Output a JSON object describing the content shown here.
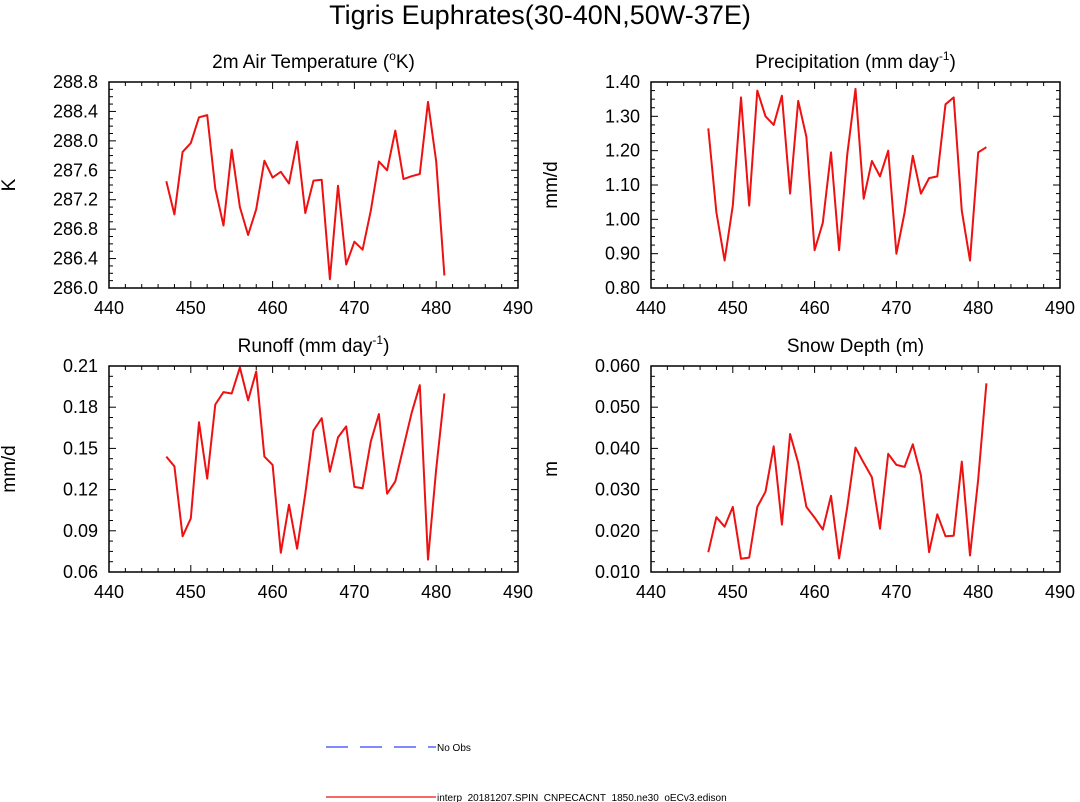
{
  "figure": {
    "title": "Tigris Euphrates(30-40N,50W-37E)",
    "colors": {
      "series": "#ee1111",
      "obs": "#3344ff",
      "axis": "#000000"
    }
  },
  "legend": {
    "items": [
      {
        "label": "No Obs",
        "style": "dashed",
        "color": "#3344ff"
      },
      {
        "label": "interp_20181207.SPIN_CNPECACNT_1850.ne30_oECv3.edison",
        "style": "solid",
        "color": "#ee1111"
      }
    ]
  },
  "chart_data": [
    {
      "type": "line",
      "title": "2m Air Temperature (",
      "title_sup": "o",
      "title_after": "K)",
      "xlabel": "",
      "ylabel": "K",
      "xlim": [
        440,
        490
      ],
      "ylim": [
        286.0,
        288.8
      ],
      "xticks": [
        "440",
        "450",
        "460",
        "470",
        "480",
        "490"
      ],
      "yticks": [
        "286.0",
        "286.4",
        "286.8",
        "287.2",
        "287.6",
        "288.0",
        "288.4",
        "288.8"
      ],
      "x": [
        447,
        448,
        449,
        450,
        451,
        452,
        453,
        454,
        455,
        456,
        457,
        458,
        459,
        460,
        461,
        462,
        463,
        464,
        465,
        466,
        467,
        468,
        469,
        470,
        471,
        472,
        473,
        474,
        475,
        476,
        477,
        478,
        479,
        480,
        481
      ],
      "values": [
        287.45,
        287.0,
        287.85,
        287.97,
        288.32,
        288.35,
        287.35,
        286.85,
        287.88,
        287.1,
        286.72,
        287.07,
        287.73,
        287.5,
        287.58,
        287.42,
        287.99,
        287.02,
        287.46,
        287.47,
        286.12,
        287.39,
        286.32,
        286.63,
        286.52,
        287.05,
        287.72,
        287.6,
        288.14,
        287.48,
        287.52,
        287.55,
        288.53,
        287.72,
        286.17
      ],
      "series_name": "interp_20181207.SPIN_CNPECACNT_1850.ne30_oECv3.edison"
    },
    {
      "type": "line",
      "title": "Precipitation (mm day",
      "title_sup": "-1",
      "title_after": ")",
      "xlabel": "",
      "ylabel": "mm/d",
      "xlim": [
        440,
        490
      ],
      "ylim": [
        0.8,
        1.4
      ],
      "xticks": [
        "440",
        "450",
        "460",
        "470",
        "480",
        "490"
      ],
      "yticks": [
        "0.80",
        "0.90",
        "1.00",
        "1.10",
        "1.20",
        "1.30",
        "1.40"
      ],
      "x": [
        447,
        448,
        449,
        450,
        451,
        452,
        453,
        454,
        455,
        456,
        457,
        458,
        459,
        460,
        461,
        462,
        463,
        464,
        465,
        466,
        467,
        468,
        469,
        470,
        471,
        472,
        473,
        474,
        475,
        476,
        477,
        478,
        479,
        480,
        481
      ],
      "values": [
        1.265,
        1.02,
        0.88,
        1.04,
        1.355,
        1.04,
        1.375,
        1.3,
        1.275,
        1.36,
        1.075,
        1.345,
        1.24,
        0.91,
        0.99,
        1.195,
        0.91,
        1.19,
        1.38,
        1.06,
        1.17,
        1.125,
        1.2,
        0.9,
        1.02,
        1.185,
        1.075,
        1.12,
        1.125,
        1.335,
        1.355,
        1.025,
        0.88,
        1.195,
        1.21
      ],
      "series_name": "interp_20181207.SPIN_CNPECACNT_1850.ne30_oECv3.edison"
    },
    {
      "type": "line",
      "title": "Runoff (mm day",
      "title_sup": "-1",
      "title_after": ")",
      "xlabel": "",
      "ylabel": "mm/d",
      "xlim": [
        440,
        490
      ],
      "ylim": [
        0.06,
        0.21
      ],
      "xticks": [
        "440",
        "450",
        "460",
        "470",
        "480",
        "490"
      ],
      "yticks": [
        "0.06",
        "0.09",
        "0.12",
        "0.15",
        "0.18",
        "0.21"
      ],
      "x": [
        447,
        448,
        449,
        450,
        451,
        452,
        453,
        454,
        455,
        456,
        457,
        458,
        459,
        460,
        461,
        462,
        463,
        464,
        465,
        466,
        467,
        468,
        469,
        470,
        471,
        472,
        473,
        474,
        475,
        476,
        477,
        478,
        479,
        480,
        481
      ],
      "values": [
        0.144,
        0.137,
        0.086,
        0.099,
        0.169,
        0.128,
        0.182,
        0.191,
        0.19,
        0.209,
        0.185,
        0.206,
        0.144,
        0.138,
        0.074,
        0.109,
        0.077,
        0.117,
        0.163,
        0.172,
        0.133,
        0.158,
        0.166,
        0.122,
        0.121,
        0.155,
        0.175,
        0.117,
        0.126,
        0.151,
        0.176,
        0.196,
        0.069,
        0.135,
        0.19
      ],
      "series_name": "interp_20181207.SPIN_CNPECACNT_1850.ne30_oECv3.edison"
    },
    {
      "type": "line",
      "title": "Snow Depth (m)",
      "title_sup": "",
      "title_after": "",
      "xlabel": "",
      "ylabel": "m",
      "xlim": [
        440,
        490
      ],
      "ylim": [
        0.01,
        0.06
      ],
      "xticks": [
        "440",
        "450",
        "460",
        "470",
        "480",
        "490"
      ],
      "yticks": [
        "0.010",
        "0.020",
        "0.030",
        "0.040",
        "0.050",
        "0.060"
      ],
      "x": [
        447,
        448,
        449,
        450,
        451,
        452,
        453,
        454,
        455,
        456,
        457,
        458,
        459,
        460,
        461,
        462,
        463,
        464,
        465,
        466,
        467,
        468,
        469,
        470,
        471,
        472,
        473,
        474,
        475,
        476,
        477,
        478,
        479,
        480,
        481
      ],
      "values": [
        0.0148,
        0.0233,
        0.021,
        0.0258,
        0.0132,
        0.0135,
        0.0258,
        0.0295,
        0.0405,
        0.0215,
        0.0435,
        0.0365,
        0.0258,
        0.0232,
        0.0203,
        0.0285,
        0.0133,
        0.0258,
        0.0402,
        0.0365,
        0.033,
        0.0205,
        0.0387,
        0.036,
        0.0355,
        0.041,
        0.0335,
        0.0148,
        0.024,
        0.0187,
        0.0188,
        0.0368,
        0.014,
        0.0325,
        0.0558
      ],
      "series_name": "interp_20181207.SPIN_CNPECACNT_1850.ne30_oECv3.edison"
    }
  ]
}
